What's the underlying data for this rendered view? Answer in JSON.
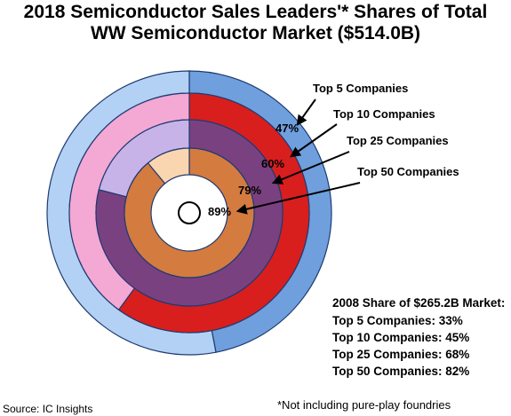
{
  "title_line1": "2018 Semiconductor Sales Leaders'* Shares of Total",
  "title_line2": "WW Semiconductor Market ($514.0B)",
  "chart_data": {
    "type": "pie",
    "variant": "concentric-rings",
    "rings": [
      {
        "name": "Top 5 Companies",
        "share_pct": 47,
        "label": "47%",
        "callout": "Top 5 Companies",
        "color_share": "#6f9fdd",
        "color_rest": "#b3d1f5"
      },
      {
        "name": "Top 10 Companies",
        "share_pct": 60,
        "label": "60%",
        "callout": "Top 10 Companies",
        "color_share": "#d91e1e",
        "color_rest": "#f4a8d4"
      },
      {
        "name": "Top 25 Companies",
        "share_pct": 79,
        "label": "79%",
        "callout": "Top 25 Companies",
        "color_share": "#7a4180",
        "color_rest": "#c8b3e8"
      },
      {
        "name": "Top 50 Companies",
        "share_pct": 89,
        "label": "89%",
        "callout": "Top 50 Companies",
        "color_share": "#d47b40",
        "color_rest": "#fad6b0"
      }
    ]
  },
  "note": {
    "heading": "2008 Share of $265.2B Market:",
    "lines": [
      "Top 5 Companies: 33%",
      "Top 10 Companies: 45%",
      "Top 25 Companies: 68%",
      "Top 50 Companies: 82%"
    ]
  },
  "source": "Source: IC Insights",
  "footnote": "*Not including pure-play foundries"
}
